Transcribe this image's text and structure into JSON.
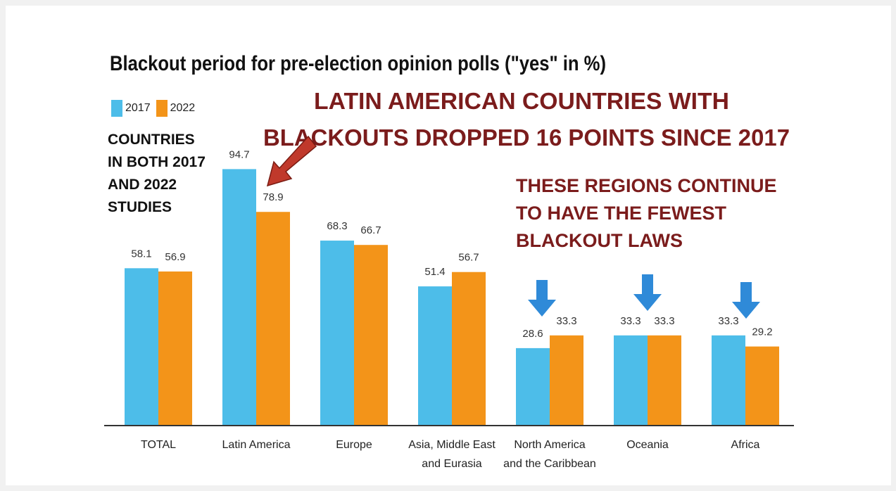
{
  "chart_data": {
    "type": "bar",
    "title": "Blackout period for pre-election opinion polls (\"yes\" in %)",
    "categories": [
      [
        "TOTAL"
      ],
      [
        "Latin America"
      ],
      [
        "Europe"
      ],
      [
        "Asia, Middle East",
        "and Eurasia"
      ],
      [
        "North America",
        "and the Caribbean"
      ],
      [
        "Oceania"
      ],
      [
        "Africa"
      ]
    ],
    "series": [
      {
        "name": "2017",
        "color": "#4dbde9",
        "values": [
          58.1,
          94.7,
          68.3,
          51.4,
          28.6,
          33.3,
          33.3
        ]
      },
      {
        "name": "2022",
        "color": "#f39419",
        "values": [
          56.9,
          78.9,
          66.7,
          56.7,
          33.3,
          33.3,
          29.2
        ]
      }
    ],
    "ylim": [
      0,
      100
    ],
    "grid": false,
    "legend_position": "top-left",
    "annotations": {
      "side_note": [
        "COUNTRIES",
        "IN BOTH 2017",
        "AND 2022",
        "STUDIES"
      ],
      "headline": [
        "LATIN AMERICAN COUNTRIES WITH",
        "BLACKOUTS DROPPED 16 POINTS SINCE 2017"
      ],
      "regions_note": [
        "THESE REGIONS CONTINUE",
        "TO HAVE THE FEWEST",
        "BLACKOUT LAWS"
      ],
      "headline_color": "#7b1c1c",
      "arrow_red_color": "#c0392b",
      "arrow_blue_color": "#2f8ad8"
    }
  }
}
